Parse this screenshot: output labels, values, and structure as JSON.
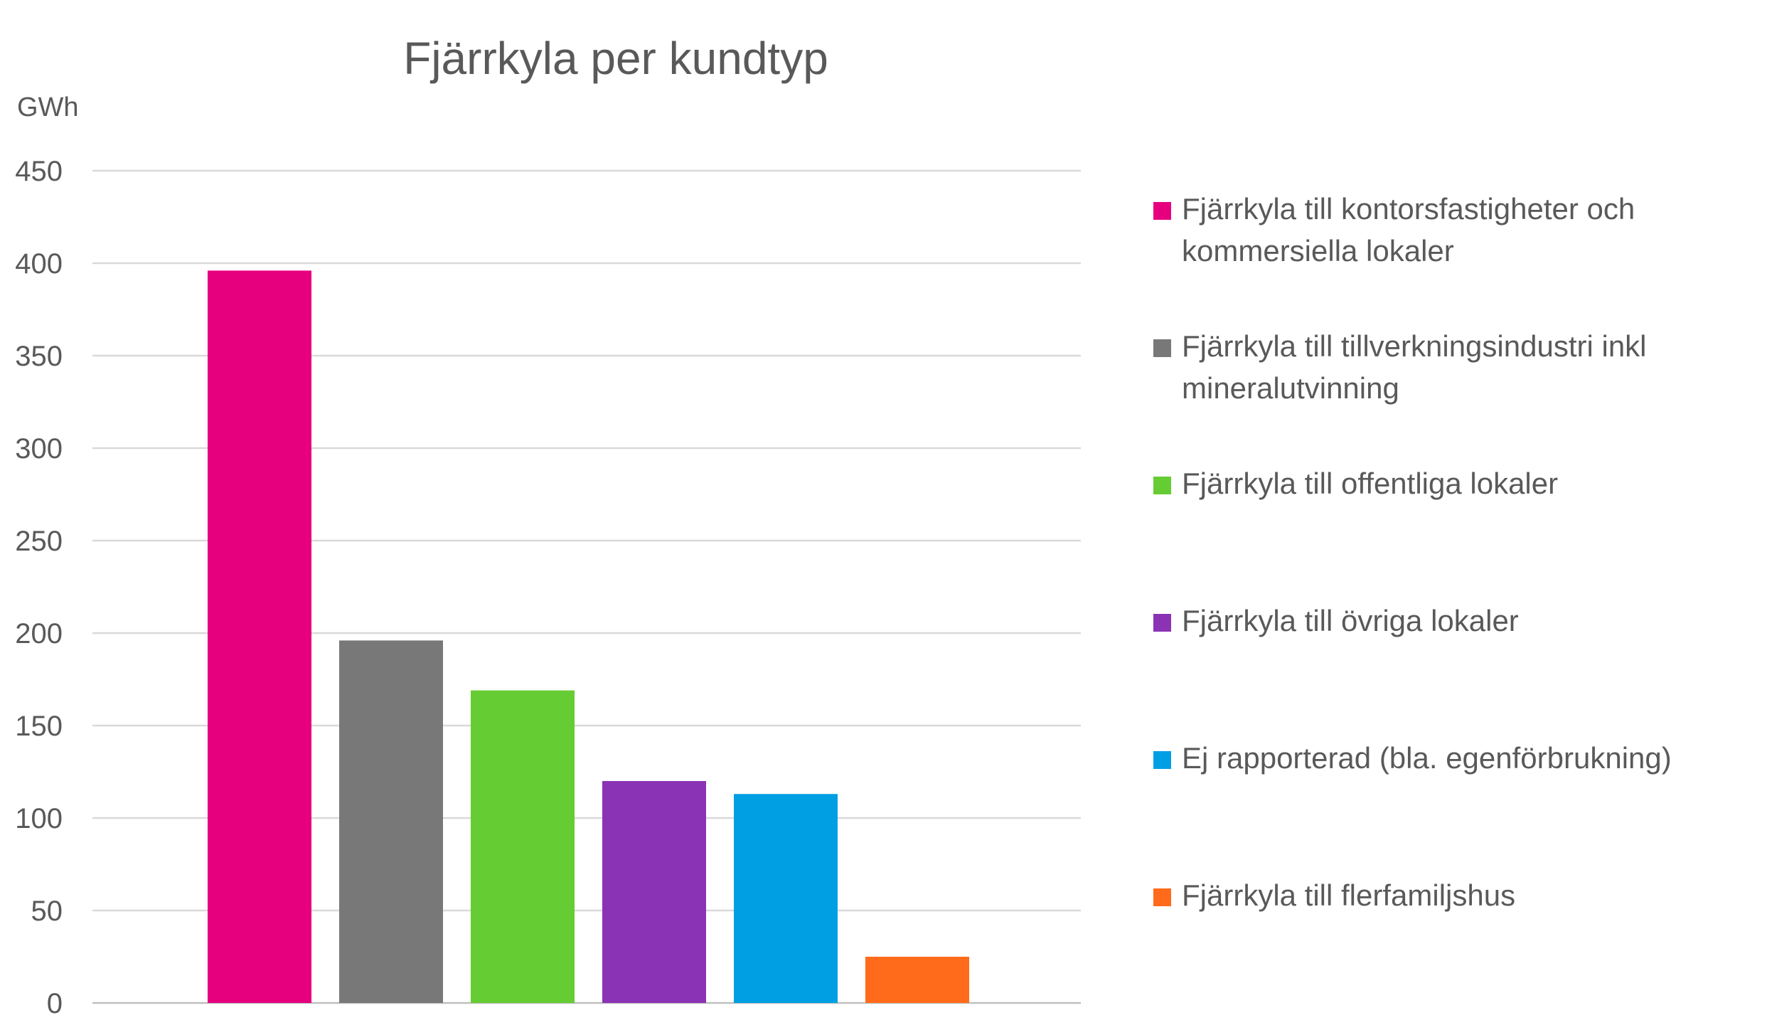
{
  "chart_data": {
    "type": "bar",
    "title": "Fjärrkyla per kundtyp",
    "ylabel": "GWh",
    "xlabel": "",
    "ylim": [
      0,
      450
    ],
    "yticks": [
      0,
      50,
      100,
      150,
      200,
      250,
      300,
      350,
      400,
      450
    ],
    "grid": true,
    "legend_position": "right",
    "categories": [
      "Fjärrkyla till kontorsfastigheter och kommersiella lokaler",
      "Fjärrkyla till tillverkningsindustri inkl mineralutvinning",
      "Fjärrkyla till offentliga lokaler",
      "Fjärrkyla till övriga lokaler",
      "Ej rapporterad (bla. egenförbrukning)",
      "Fjärrkyla till flerfamiljshus"
    ],
    "legend_lines": [
      [
        "Fjärrkyla till kontorsfastigheter och",
        "kommersiella lokaler"
      ],
      [
        "Fjärrkyla till tillverkningsindustri inkl",
        "mineralutvinning"
      ],
      [
        "Fjärrkyla till offentliga lokaler"
      ],
      [
        "Fjärrkyla till övriga lokaler"
      ],
      [
        "Ej rapporterad (bla. egenförbrukning)"
      ],
      [
        "Fjärrkyla till flerfamiljshus"
      ]
    ],
    "values": [
      396,
      196,
      169,
      120,
      113,
      25
    ],
    "colors": [
      "#e6007e",
      "#787878",
      "#66cc33",
      "#8b33b5",
      "#009fe3",
      "#ff6b1a"
    ]
  }
}
